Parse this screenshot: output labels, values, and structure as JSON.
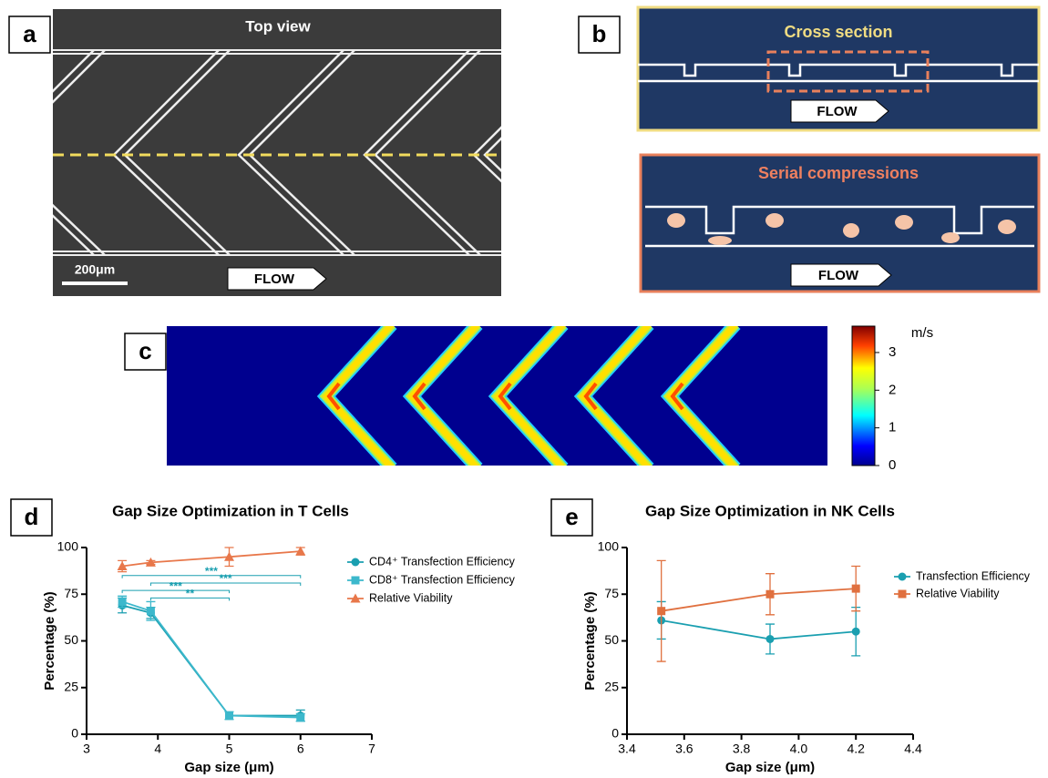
{
  "panels": {
    "a": {
      "label": "a",
      "title": "Top view",
      "scale_bar": "200μm",
      "flow": "FLOW"
    },
    "b": {
      "label": "b",
      "cross_section": "Cross section",
      "flow_top": "FLOW",
      "serial": "Serial compressions",
      "flow_bottom": "FLOW"
    },
    "c": {
      "label": "c",
      "unit": "m/s",
      "colorbar_lim": [
        0,
        3.7
      ],
      "colorbar_ticks": [
        0,
        1,
        2,
        3
      ]
    },
    "d": {
      "label": "d"
    },
    "e": {
      "label": "e"
    }
  },
  "chart_data": [
    {
      "type": "line",
      "title": "Gap Size Optimization in T Cells",
      "xlabel": "Gap size (μm)",
      "ylabel": "Percentage (%)",
      "xlim": [
        3,
        7
      ],
      "xticks": [
        3,
        4,
        5,
        6,
        7
      ],
      "ylim": [
        0,
        100
      ],
      "yticks": [
        0,
        25,
        50,
        75,
        100
      ],
      "x": [
        3.5,
        3.9,
        5,
        6
      ],
      "series": [
        {
          "name": "CD4⁺ Transfection Efficiency",
          "color": "#1a9fb0",
          "marker": "circle",
          "values": [
            69,
            65,
            10,
            10
          ],
          "errors": [
            4,
            3,
            2,
            3
          ]
        },
        {
          "name": "CD8⁺ Transfection Efficiency",
          "color": "#3cb8cc",
          "marker": "square",
          "values": [
            71,
            66,
            10,
            9
          ],
          "errors": [
            3,
            5,
            2,
            2
          ]
        },
        {
          "name": "Relative Viability",
          "color": "#e8774a",
          "marker": "triangle",
          "values": [
            90,
            92,
            95,
            98
          ],
          "errors": [
            3,
            1,
            5,
            2
          ]
        }
      ],
      "significance": [
        {
          "x": [
            3.5,
            6
          ],
          "y": 85,
          "label": "***"
        },
        {
          "x": [
            3.9,
            6
          ],
          "y": 81,
          "label": "***"
        },
        {
          "x": [
            3.5,
            5
          ],
          "y": 77,
          "label": "***"
        },
        {
          "x": [
            3.9,
            5
          ],
          "y": 73,
          "label": "**"
        }
      ]
    },
    {
      "type": "line",
      "title": "Gap Size Optimization in NK Cells",
      "xlabel": "Gap size (μm)",
      "ylabel": "Percentage (%)",
      "xlim": [
        3.4,
        4.4
      ],
      "xticks": [
        3.4,
        3.6,
        3.8,
        {
          "value": 4,
          "label": "4.0"
        },
        4.2,
        4.4
      ],
      "ylim": [
        0,
        100
      ],
      "yticks": [
        0,
        25,
        50,
        75,
        100
      ],
      "x": [
        3.52,
        3.9,
        4.2
      ],
      "series": [
        {
          "name": "Transfection Efficiency",
          "color": "#1a9fb0",
          "marker": "circle",
          "values": [
            61,
            51,
            55
          ],
          "errors": [
            10,
            8,
            13
          ]
        },
        {
          "name": "Relative Viability",
          "color": "#e0703f",
          "marker": "square",
          "values": [
            66,
            75,
            78
          ],
          "errors": [
            27,
            11,
            12
          ]
        }
      ]
    }
  ]
}
